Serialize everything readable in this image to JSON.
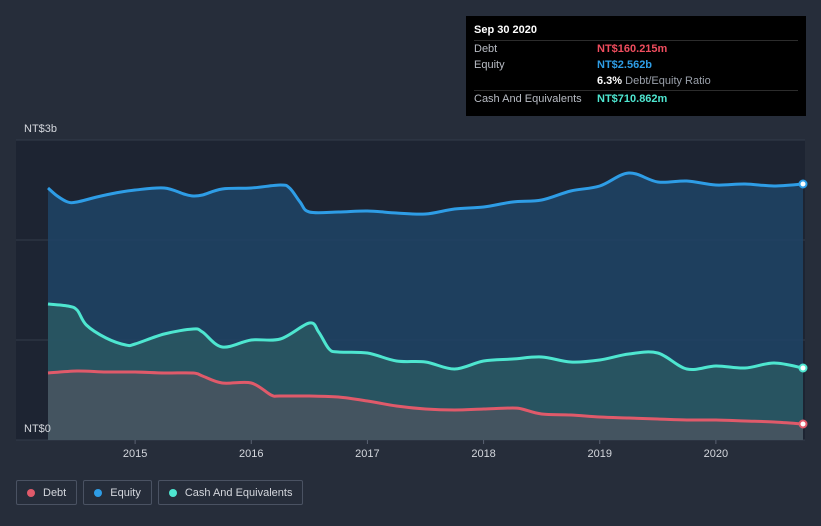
{
  "chart_data": {
    "type": "area",
    "currency": "NT$",
    "y_axis": {
      "top_label": "NT$3b",
      "bottom_label": "NT$0",
      "ylim": [
        0,
        3.0
      ],
      "unit": "b"
    },
    "x_ticks": [
      "2015",
      "2016",
      "2017",
      "2018",
      "2019",
      "2020"
    ],
    "xlim": [
      2014.25,
      2020.75
    ],
    "series": [
      {
        "name": "Equity",
        "color": "#2e9de6",
        "x": [
          2014.25,
          2014.33,
          2014.42,
          2014.5,
          2014.67,
          2014.83,
          2015.0,
          2015.25,
          2015.42,
          2015.5,
          2015.58,
          2015.75,
          2016.0,
          2016.25,
          2016.33,
          2016.42,
          2016.5,
          2016.75,
          2017.0,
          2017.25,
          2017.5,
          2017.75,
          2018.0,
          2018.25,
          2018.5,
          2018.75,
          2019.0,
          2019.25,
          2019.5,
          2019.75,
          2020.0,
          2020.25,
          2020.5,
          2020.75
        ],
        "values": [
          2.52,
          2.44,
          2.38,
          2.38,
          2.43,
          2.47,
          2.5,
          2.52,
          2.46,
          2.44,
          2.45,
          2.51,
          2.52,
          2.55,
          2.52,
          2.38,
          2.28,
          2.28,
          2.29,
          2.27,
          2.26,
          2.31,
          2.33,
          2.38,
          2.4,
          2.49,
          2.54,
          2.67,
          2.58,
          2.59,
          2.55,
          2.56,
          2.54,
          2.56
        ]
      },
      {
        "name": "Cash And Equivalents",
        "color": "#4ee6d0",
        "x": [
          2014.25,
          2014.42,
          2014.5,
          2014.58,
          2014.75,
          2014.92,
          2015.0,
          2015.25,
          2015.5,
          2015.58,
          2015.75,
          2016.0,
          2016.25,
          2016.5,
          2016.58,
          2016.67,
          2016.75,
          2017.0,
          2017.25,
          2017.5,
          2017.75,
          2018.0,
          2018.25,
          2018.5,
          2018.75,
          2019.0,
          2019.25,
          2019.5,
          2019.75,
          2020.0,
          2020.25,
          2020.5,
          2020.75
        ],
        "values": [
          1.36,
          1.34,
          1.3,
          1.15,
          1.02,
          0.95,
          0.96,
          1.06,
          1.11,
          1.08,
          0.93,
          1.0,
          1.01,
          1.17,
          1.08,
          0.91,
          0.88,
          0.87,
          0.79,
          0.78,
          0.71,
          0.79,
          0.81,
          0.83,
          0.78,
          0.8,
          0.86,
          0.87,
          0.71,
          0.74,
          0.72,
          0.77,
          0.72
        ]
      },
      {
        "name": "Debt",
        "color": "#e05a6a",
        "x": [
          2014.25,
          2014.5,
          2014.75,
          2015.0,
          2015.25,
          2015.5,
          2015.58,
          2015.75,
          2016.0,
          2016.17,
          2016.25,
          2016.5,
          2016.75,
          2017.0,
          2017.25,
          2017.5,
          2017.75,
          2018.0,
          2018.25,
          2018.33,
          2018.5,
          2018.75,
          2019.0,
          2019.25,
          2019.5,
          2019.75,
          2020.0,
          2020.25,
          2020.5,
          2020.75
        ],
        "values": [
          0.67,
          0.69,
          0.68,
          0.68,
          0.67,
          0.67,
          0.64,
          0.57,
          0.57,
          0.45,
          0.44,
          0.44,
          0.43,
          0.39,
          0.34,
          0.31,
          0.3,
          0.31,
          0.32,
          0.31,
          0.26,
          0.25,
          0.23,
          0.22,
          0.21,
          0.2,
          0.2,
          0.19,
          0.18,
          0.16
        ]
      }
    ],
    "tooltip": {
      "date": "Sep 30 2020",
      "rows": [
        {
          "label": "Debt",
          "value": "NT$160.215m",
          "color": "#f04d5e"
        },
        {
          "label": "Equity",
          "value": "NT$2.562b",
          "color": "#2e9de6"
        },
        {
          "label": "",
          "value": "6.3%",
          "suffix": "Debt/Equity Ratio",
          "color": "#ffffff"
        },
        {
          "label": "Cash And Equivalents",
          "value": "NT$710.862m",
          "color": "#4ee6d0"
        }
      ]
    }
  },
  "legend": [
    {
      "label": "Debt",
      "color": "#e05a6a"
    },
    {
      "label": "Equity",
      "color": "#2e9de6"
    },
    {
      "label": "Cash And Equivalents",
      "color": "#4ee6d0"
    }
  ]
}
